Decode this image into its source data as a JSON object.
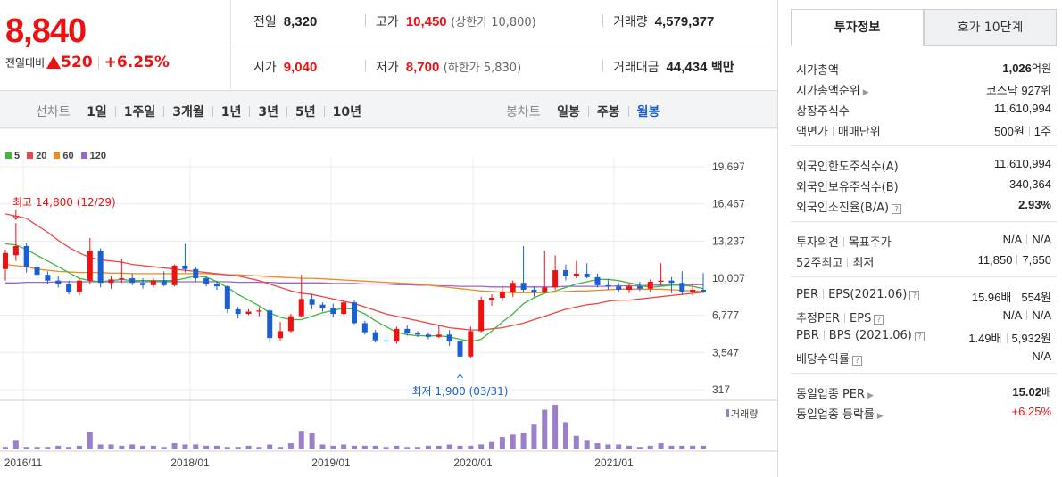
{
  "quote": {
    "price": "8,840",
    "change_label": "전일대비",
    "change_amount": "520",
    "change_rate": "+6.25%"
  },
  "stats": {
    "prev_label": "전일",
    "prev_value": "8,320",
    "high_label": "고가",
    "high_value": "10,450",
    "upper_limit": "(상한가 10,800)",
    "volume_label": "거래량",
    "volume_value": "4,579,377",
    "open_label": "시가",
    "open_value": "9,040",
    "low_label": "저가",
    "low_value": "8,700",
    "lower_limit": "(하한가 5,830)",
    "amount_label": "거래대금",
    "amount_value": "44,434",
    "amount_unit": "백만"
  },
  "toolbar": {
    "line_label": "선차트",
    "line_items": [
      "1일",
      "1주일",
      "3개월",
      "1년",
      "3년",
      "5년",
      "10년"
    ],
    "candle_label": "봉차트",
    "candle_items": [
      "일봉",
      "주봉",
      "월봉"
    ],
    "active_candle": "월봉"
  },
  "colors": {
    "up": "#ee1111",
    "down": "#1960d2",
    "ma5": "#3cb83c",
    "ma20": "#ee4444",
    "ma60": "#f08a1e",
    "ma120": "#9966cc",
    "volume": "#9b7fc9"
  },
  "chart_data": {
    "type": "candlestick",
    "legend": [
      "5",
      "20",
      "60",
      "120"
    ],
    "y_ticks": [
      "19,697",
      "16,467",
      "13,237",
      "10,007",
      "6,777",
      "3,547",
      "317"
    ],
    "y_range": [
      317,
      19697
    ],
    "x_ticks": [
      "2016/11",
      "2018/01",
      "2019/01",
      "2020/01",
      "2021/01"
    ],
    "high_annotation": "최고 14,800 (12/29)",
    "low_annotation": "최저 1,900 (03/31)",
    "volume_label": "거래량",
    "candles": [
      {
        "o": 10800,
        "h": 12500,
        "l": 9800,
        "c": 12200
      },
      {
        "o": 12000,
        "h": 14800,
        "l": 11500,
        "c": 12800
      },
      {
        "o": 12800,
        "h": 13100,
        "l": 10500,
        "c": 11000
      },
      {
        "o": 11000,
        "h": 11500,
        "l": 10000,
        "c": 10300
      },
      {
        "o": 10300,
        "h": 10600,
        "l": 9500,
        "c": 9800
      },
      {
        "o": 9800,
        "h": 10200,
        "l": 9200,
        "c": 9500
      },
      {
        "o": 9500,
        "h": 9800,
        "l": 8600,
        "c": 8800
      },
      {
        "o": 8800,
        "h": 10000,
        "l": 8500,
        "c": 9800
      },
      {
        "o": 9800,
        "h": 13500,
        "l": 9500,
        "c": 12400
      },
      {
        "o": 12400,
        "h": 12600,
        "l": 9200,
        "c": 9600
      },
      {
        "o": 9600,
        "h": 10200,
        "l": 9100,
        "c": 9900
      },
      {
        "o": 9900,
        "h": 11700,
        "l": 9600,
        "c": 10000
      },
      {
        "o": 10000,
        "h": 10400,
        "l": 9400,
        "c": 9600
      },
      {
        "o": 9600,
        "h": 10000,
        "l": 9100,
        "c": 9400
      },
      {
        "o": 9400,
        "h": 10000,
        "l": 9200,
        "c": 9800
      },
      {
        "o": 9800,
        "h": 10600,
        "l": 9300,
        "c": 9400
      },
      {
        "o": 9400,
        "h": 11200,
        "l": 9300,
        "c": 11100
      },
      {
        "o": 11100,
        "h": 13000,
        "l": 10500,
        "c": 10800
      },
      {
        "o": 10800,
        "h": 11000,
        "l": 9700,
        "c": 10000
      },
      {
        "o": 10000,
        "h": 10200,
        "l": 9300,
        "c": 9500
      },
      {
        "o": 9500,
        "h": 9800,
        "l": 9000,
        "c": 9300
      },
      {
        "o": 9300,
        "h": 9400,
        "l": 7000,
        "c": 7300
      },
      {
        "o": 7300,
        "h": 7500,
        "l": 6500,
        "c": 6900
      },
      {
        "o": 6900,
        "h": 7300,
        "l": 6800,
        "c": 7100
      },
      {
        "o": 7100,
        "h": 7500,
        "l": 6700,
        "c": 7200
      },
      {
        "o": 7200,
        "h": 7300,
        "l": 4400,
        "c": 4800
      },
      {
        "o": 4800,
        "h": 6200,
        "l": 4600,
        "c": 5400
      },
      {
        "o": 5400,
        "h": 6900,
        "l": 5300,
        "c": 6700
      },
      {
        "o": 6700,
        "h": 10300,
        "l": 6600,
        "c": 8200
      },
      {
        "o": 8200,
        "h": 8600,
        "l": 7300,
        "c": 7700
      },
      {
        "o": 7700,
        "h": 7900,
        "l": 7100,
        "c": 7400
      },
      {
        "o": 7400,
        "h": 7800,
        "l": 6600,
        "c": 6900
      },
      {
        "o": 6900,
        "h": 8100,
        "l": 6800,
        "c": 7900
      },
      {
        "o": 7900,
        "h": 8100,
        "l": 6000,
        "c": 6100
      },
      {
        "o": 6100,
        "h": 6300,
        "l": 5100,
        "c": 5300
      },
      {
        "o": 5300,
        "h": 5500,
        "l": 4400,
        "c": 4600
      },
      {
        "o": 4600,
        "h": 4900,
        "l": 4200,
        "c": 4500
      },
      {
        "o": 4500,
        "h": 5800,
        "l": 4300,
        "c": 5600
      },
      {
        "o": 5600,
        "h": 5900,
        "l": 5000,
        "c": 5200
      },
      {
        "o": 5200,
        "h": 5400,
        "l": 4900,
        "c": 5100
      },
      {
        "o": 5100,
        "h": 5300,
        "l": 4700,
        "c": 4900
      },
      {
        "o": 4900,
        "h": 5900,
        "l": 4800,
        "c": 5100
      },
      {
        "o": 5100,
        "h": 5500,
        "l": 4100,
        "c": 4500
      },
      {
        "o": 4500,
        "h": 4800,
        "l": 1900,
        "c": 3200
      },
      {
        "o": 3200,
        "h": 5800,
        "l": 3100,
        "c": 5400
      },
      {
        "o": 5400,
        "h": 8400,
        "l": 5300,
        "c": 8100
      },
      {
        "o": 8100,
        "h": 8600,
        "l": 7600,
        "c": 8300
      },
      {
        "o": 8300,
        "h": 9300,
        "l": 8000,
        "c": 8800
      },
      {
        "o": 8800,
        "h": 9800,
        "l": 8400,
        "c": 9600
      },
      {
        "o": 9600,
        "h": 12800,
        "l": 8800,
        "c": 9000
      },
      {
        "o": 9000,
        "h": 9300,
        "l": 8400,
        "c": 8800
      },
      {
        "o": 8800,
        "h": 12400,
        "l": 8700,
        "c": 9200
      },
      {
        "o": 9200,
        "h": 12000,
        "l": 9000,
        "c": 10700
      },
      {
        "o": 10700,
        "h": 11200,
        "l": 9800,
        "c": 10200
      },
      {
        "o": 10200,
        "h": 11500,
        "l": 10000,
        "c": 10400
      },
      {
        "o": 10400,
        "h": 11300,
        "l": 10000,
        "c": 10100
      },
      {
        "o": 10100,
        "h": 10400,
        "l": 9200,
        "c": 9400
      },
      {
        "o": 9400,
        "h": 9900,
        "l": 9000,
        "c": 9300
      },
      {
        "o": 9300,
        "h": 9600,
        "l": 8800,
        "c": 9000
      },
      {
        "o": 9000,
        "h": 9500,
        "l": 8700,
        "c": 9300
      },
      {
        "o": 9300,
        "h": 9700,
        "l": 8900,
        "c": 9100
      },
      {
        "o": 9100,
        "h": 9900,
        "l": 8800,
        "c": 9700
      },
      {
        "o": 9700,
        "h": 11300,
        "l": 9400,
        "c": 9800
      },
      {
        "o": 9800,
        "h": 10100,
        "l": 8700,
        "c": 9600
      },
      {
        "o": 9600,
        "h": 10600,
        "l": 8600,
        "c": 8800
      },
      {
        "o": 8800,
        "h": 9600,
        "l": 8500,
        "c": 9000
      },
      {
        "o": 9000,
        "h": 10450,
        "l": 8700,
        "c": 8840
      }
    ],
    "volume": [
      2,
      7,
      2,
      2,
      2,
      3,
      2,
      3,
      14,
      4,
      4,
      3,
      4,
      3,
      3,
      2,
      5,
      4,
      4,
      3,
      3,
      2,
      2,
      3,
      2,
      4,
      2,
      5,
      15,
      13,
      4,
      3,
      4,
      3,
      3,
      3,
      2,
      3,
      2,
      2,
      3,
      3,
      4,
      3,
      3,
      4,
      6,
      10,
      12,
      13,
      20,
      32,
      36,
      22,
      11,
      7,
      5,
      4,
      4,
      3,
      2,
      3,
      5,
      3,
      3,
      3,
      3
    ],
    "ma5": [
      13000,
      12900,
      12500,
      12000,
      11500,
      11000,
      10500,
      10000,
      9800,
      9700,
      9800,
      9900,
      9800,
      9800,
      9800,
      9800,
      9800,
      10000,
      10200,
      10100,
      9700,
      9200,
      8600,
      8100,
      7600,
      7000,
      6600,
      6400,
      6400,
      6700,
      7000,
      7200,
      7400,
      7300,
      6900,
      6300,
      5800,
      5300,
      5100,
      5000,
      5000,
      5000,
      4900,
      4700,
      4500,
      4700,
      5400,
      6200,
      6900,
      7800,
      8300,
      8700,
      8900,
      9200,
      9500,
      9700,
      9900,
      9900,
      9800,
      9600,
      9400,
      9200,
      9300,
      9400,
      9400,
      9300,
      9100
    ],
    "ma20": [
      15600,
      15400,
      15200,
      14600,
      14000,
      13300,
      12700,
      12200,
      11800,
      11600,
      11500,
      11400,
      11200,
      11100,
      11000,
      10900,
      10800,
      10700,
      10600,
      10500,
      10400,
      10300,
      10200,
      10000,
      9800,
      9500,
      9200,
      8900,
      8700,
      8600,
      8400,
      8200,
      8000,
      7800,
      7500,
      7200,
      6900,
      6700,
      6500,
      6300,
      6100,
      5900,
      5700,
      5600,
      5500,
      5500,
      5600,
      5700,
      5900,
      6100,
      6400,
      6700,
      7000,
      7300,
      7500,
      7700,
      7800,
      8000,
      8100,
      8100,
      8200,
      8300,
      8400,
      8500,
      8600,
      8700,
      8800
    ],
    "ma60": [
      11200,
      11100,
      11000,
      10800,
      10700,
      10600,
      10550,
      10500,
      10500,
      10500,
      10450,
      10450,
      10400,
      10400,
      10400,
      10400,
      10400,
      10400,
      10400,
      10400,
      10350,
      10300,
      10300,
      10250,
      10200,
      10150,
      10100,
      10050,
      10000,
      10000,
      9950,
      9900,
      9850,
      9800,
      9750,
      9700,
      9650,
      9600,
      9550,
      9500,
      9400,
      9300,
      9200,
      9100,
      9000,
      8900,
      8850,
      8800,
      8750,
      8750,
      8750,
      8750,
      8800,
      8850,
      8900,
      8900,
      8950,
      9000,
      9050,
      9050,
      9050,
      9050,
      9050,
      9000,
      8950,
      8900,
      8850
    ],
    "ma120": [
      9600,
      9600,
      9650,
      9650,
      9650,
      9700,
      9700,
      9700,
      9700,
      9700,
      9700,
      9700,
      9700,
      9700,
      9700,
      9700,
      9700,
      9700,
      9700,
      9700,
      9700,
      9700,
      9650,
      9650,
      9650,
      9650,
      9600,
      9600,
      9600,
      9600,
      9600,
      9550,
      9550,
      9550,
      9500,
      9500,
      9500,
      9450,
      9450,
      9400,
      9400,
      9350,
      9350,
      9300,
      9300,
      9300,
      9250,
      9250,
      9250,
      9250,
      9250,
      9250,
      9250,
      9300,
      9300,
      9300,
      9300,
      9300,
      9350,
      9350,
      9350,
      9400,
      9400,
      9400,
      9450,
      9450,
      9450
    ]
  },
  "invest": {
    "tab1": "투자정보",
    "tab2": "호가 10단계",
    "mcap_label": "시가총액",
    "mcap_value": "1,026",
    "mcap_unit": "억원",
    "mcap_rank_label": "시가총액순위",
    "mcap_rank_value": "코스닥 927위",
    "listed_label": "상장주식수",
    "listed_value": "11,610,994",
    "face_label": "액면가",
    "unit_label": "매매단위",
    "face_value": "500원",
    "unit_value": "1주",
    "foreign_limit_label": "외국인한도주식수(A)",
    "foreign_limit_value": "11,610,994",
    "foreign_hold_label": "외국인보유주식수(B)",
    "foreign_hold_value": "340,364",
    "foreign_ratio_label": "외국인소진율(B/A)",
    "foreign_ratio_value": "2.93%",
    "opinion_label": "투자의견",
    "target_label": "목표주가",
    "opinion_value": "N/A",
    "target_value": "N/A",
    "w52_high_label": "52주최고",
    "w52_low_label": "최저",
    "w52_high_value": "11,850",
    "w52_low_value": "7,650",
    "per_label": "PER",
    "eps_label": "EPS(2021.06)",
    "per_value": "15.96배",
    "eps_value": "554원",
    "est_per_label": "추정PER",
    "est_eps_label": "EPS",
    "est_per_value": "N/A",
    "est_eps_value": "N/A",
    "pbr_label": "PBR",
    "bps_label": "BPS (2021.06)",
    "pbr_value": "1.49배",
    "bps_value": "5,932원",
    "div_label": "배당수익률",
    "div_value": "N/A",
    "sector_per_label": "동일업종 PER",
    "sector_per_value": "15.02",
    "sector_per_unit": "배",
    "sector_rate_label": "동일업종 등락률",
    "sector_rate_value": "+6.25%"
  }
}
